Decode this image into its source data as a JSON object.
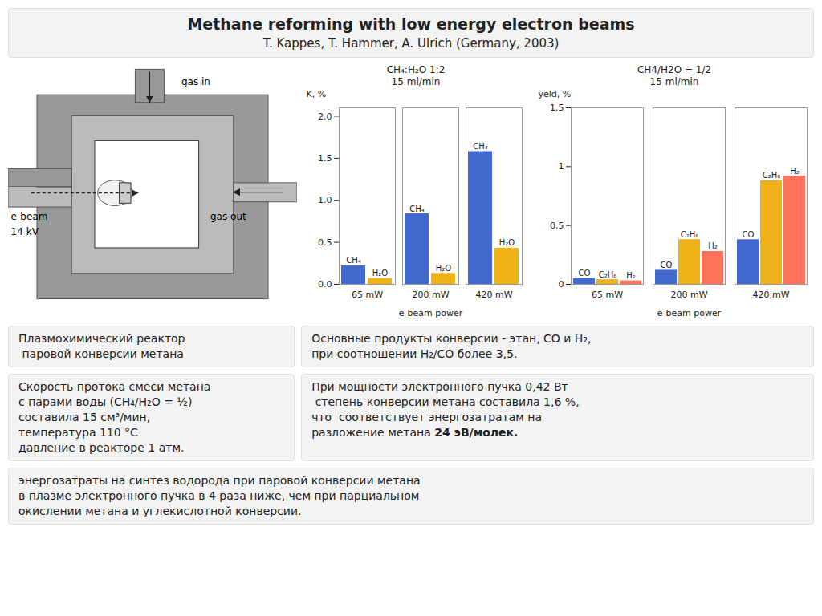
{
  "title": "Methane reforming with low energy electron beams",
  "subtitle": "T. Kappes, T. Hammer, A. Ulrich (Germany, 2003)",
  "annotations": [
    "gas in",
    "e-beam",
    "14 kV",
    "gas out",
    "Плазмохимический реактор",
    " паровой конверсии метана",
    "Основные продукты конверсии - этан, CO и H₂,\nпри соотношении H₂/CO более 3,5.",
    "Скорость протока смеси метана\nс парами воды (CH₄/H₂O = ½)\nсоставила 15 см³/мин,\nтемпература 110 °C\nдавление в реакторе 1 атм.",
    "При мощности электронного пучка 0,42 Вт\n степень конверсии метана составила 1,6 %,\nчто  соответствует энергозатратам на\nразложение метана ",
    "24 эВ/молек.",
    "энергозатраты на синтез водорода при паровой конверсии метана\nв плазме электронного пучка в 4 раза ниже, чем при парциальном\nокислении метана и углекислотной конверсии."
  ],
  "chart_data": [
    {
      "type": "bar",
      "title": "CH₄:H₂O 1:2",
      "subtitle": "15 ml/min",
      "xlabel": "e-beam power",
      "ylabel": "K, %",
      "categories": [
        "65 mW",
        "200 mW",
        "420 mW"
      ],
      "series": [
        {
          "name": "CH₄",
          "values": [
            0.22,
            0.84,
            1.58
          ]
        },
        {
          "name": "H₂O",
          "values": [
            0.07,
            0.13,
            0.43
          ]
        }
      ],
      "ylim": [
        0,
        2.1
      ],
      "yticks": [
        {
          "value": 0,
          "label": "0.0"
        },
        0.5,
        {
          "value": 1,
          "label": "1.0"
        },
        1.5,
        {
          "value": 2,
          "label": "2.0"
        }
      ]
    },
    {
      "type": "bar",
      "title": "CH4/H2O = 1/2",
      "subtitle": "15 ml/min",
      "xlabel": "e-beam power",
      "ylabel": "yeld, %",
      "categories": [
        "65 mW",
        "200 mW",
        "420 mW"
      ],
      "series": [
        {
          "name": "CO",
          "values": [
            0.05,
            0.12,
            0.38
          ]
        },
        {
          "name": "C₂H₆",
          "values": [
            0.04,
            0.38,
            0.88
          ]
        },
        {
          "name": "H₂",
          "values": [
            0.03,
            0.28,
            0.92
          ]
        }
      ],
      "ylim": [
        0,
        1.5
      ],
      "yticks": [
        0,
        {
          "value": 0.5,
          "label": "0,5"
        },
        1,
        {
          "value": 1.5,
          "label": "1,5"
        }
      ]
    }
  ]
}
